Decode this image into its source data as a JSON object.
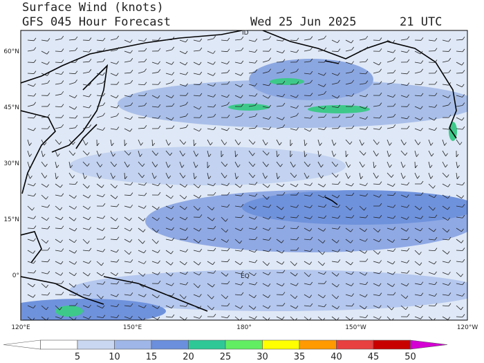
{
  "header": {
    "title": "Surface Wind (knots)",
    "subtitle": "GFS 045 Hour Forecast",
    "date": "Wed 25 Jun 2025",
    "time": "21 UTC"
  },
  "map": {
    "lat_labels": [
      "60°N",
      "45°N",
      "30°N",
      "15°N",
      "0°"
    ],
    "lon_labels": [
      "120°E",
      "150°E",
      "180°",
      "150°W",
      "120°W"
    ],
    "annotations": [
      "ID",
      "EQ"
    ]
  },
  "colorbar": {
    "ticks": [
      5,
      10,
      15,
      20,
      25,
      30,
      35,
      40,
      45,
      50
    ],
    "colors": [
      "#ffffff",
      "#c9d7f1",
      "#9fb6e8",
      "#6b8fdc",
      "#2ec896",
      "#62ee62",
      "#ffff00",
      "#ff9a00",
      "#e84040",
      "#c80000",
      "#d400d4"
    ]
  }
}
